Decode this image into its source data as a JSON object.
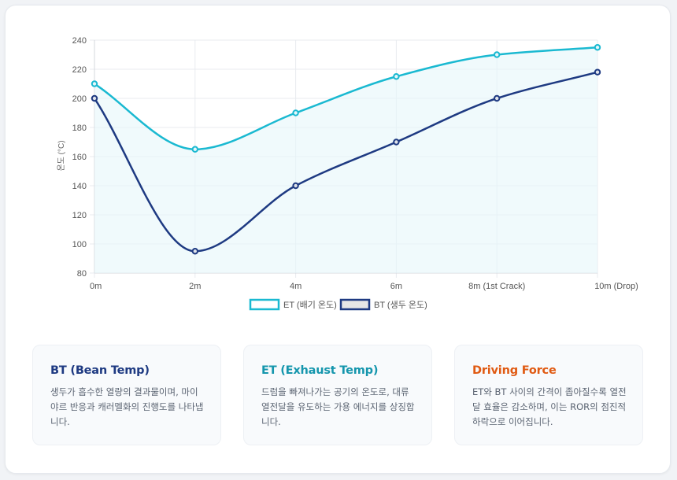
{
  "colors": {
    "et": "#1ab9d1",
    "bt": "#1e3a82",
    "bt_title": "#1e3a82",
    "et_title": "#1596ad",
    "force_title": "#e05a12",
    "grid": "#e8ebef",
    "tick_text": "#555555"
  },
  "chart_data": {
    "type": "line",
    "categories": [
      "0m",
      "2m",
      "4m",
      "6m",
      "8m (1st Crack)",
      "10m (Drop)"
    ],
    "series": [
      {
        "name": "ET (배기 온도)",
        "values": [
          210,
          165,
          190,
          215,
          230,
          235
        ],
        "color": "#1ab9d1",
        "fill": "#e6f7fa"
      },
      {
        "name": "BT (생두 온도)",
        "values": [
          200,
          95,
          140,
          170,
          200,
          218
        ],
        "color": "#1e3a82",
        "fill": "#dfe3ea"
      }
    ],
    "title": "",
    "xlabel": "",
    "ylabel": "온도 (°C)",
    "ylim": [
      80,
      240
    ],
    "yticks": [
      80,
      100,
      120,
      140,
      160,
      180,
      200,
      220,
      240
    ],
    "grid": true,
    "legend": "bottom-center"
  },
  "panels": [
    {
      "title": "BT (Bean Temp)",
      "text": "생두가 흡수한 열량의 결과물이며, 마이야르 반응과 캐러멜화의 진행도를 나타냅니다."
    },
    {
      "title": "ET (Exhaust Temp)",
      "text": "드럼을 빠져나가는 공기의 온도로, 대류 열전달을 유도하는 가용 에너지를 상징합니다."
    },
    {
      "title": "Driving Force",
      "text": "ET와 BT 사이의 간격이 좁아질수록 열전달 효율은 감소하며, 이는 ROR의 점진적 하락으로 이어집니다."
    }
  ]
}
